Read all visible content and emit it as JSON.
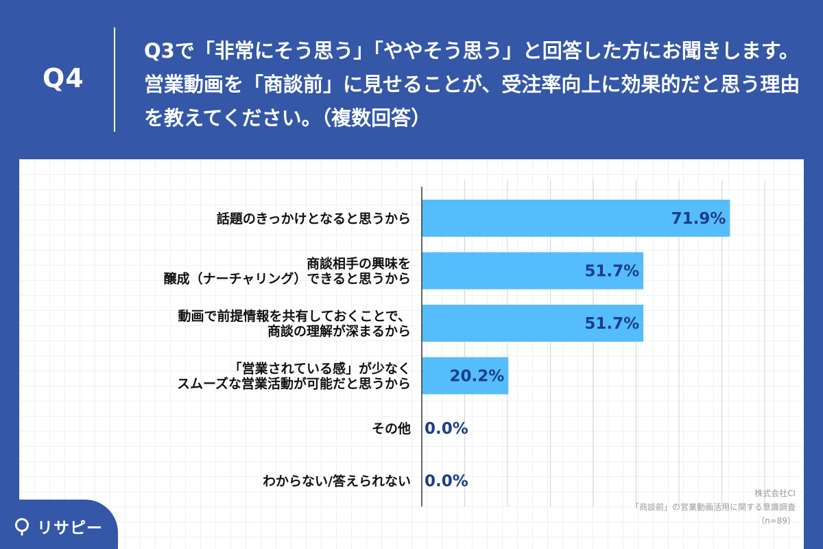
{
  "header": {
    "q_number": "Q4",
    "question": "Q3で「非常にそう思う」「ややそう思う」と回答した方にお聞きします。営業動画を「商談前」に見せることが、受注率向上に効果的だと思う理由を教えてください。（複数回答）"
  },
  "chart_data": {
    "type": "bar",
    "orientation": "horizontal",
    "categories": [
      [
        "話題のきっかけとなると思うから"
      ],
      [
        "商談相手の興味を",
        "醸成（ナーチャリング）できると思うから"
      ],
      [
        "動画で前提情報を共有しておくことで、",
        "商談の理解が深まるから"
      ],
      [
        "「営業されている感」が少なく",
        "スムーズな営業活動が可能だと思うから"
      ],
      [
        "その他"
      ],
      [
        "わからない/答えられない"
      ]
    ],
    "values": [
      71.9,
      51.7,
      51.7,
      20.2,
      0.0,
      0.0
    ],
    "value_labels": [
      "71.9%",
      "51.7%",
      "51.7%",
      "20.2%",
      "0.0%",
      "0.0%"
    ],
    "xlim": [
      0,
      80
    ],
    "grid": true,
    "bar_color": "#55bdfb",
    "label_color": "#1c3e88"
  },
  "source": {
    "company": "株式会社CI",
    "survey": "「商談前」の営業動画活用に関する意識調査",
    "sample": "（n=89）"
  },
  "brand": {
    "logo_text": "リサピー",
    "logo_icon": "search-pin-icon",
    "accent": "#3457a8"
  }
}
